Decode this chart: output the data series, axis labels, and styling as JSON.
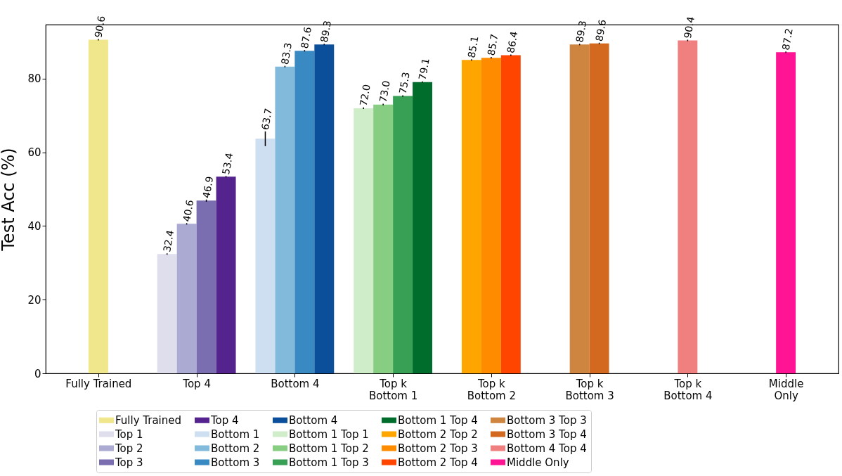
{
  "chart_data": {
    "type": "bar",
    "ylabel": "Test Acc (%)",
    "categories": [
      "Fully Trained",
      "Top 4",
      "Bottom 4",
      "Top k\nBottom 1",
      "Top k\nBottom 2",
      "Top k\nBottom 3",
      "Top k\nBottom 4",
      "Middle\nOnly"
    ],
    "ylim": [
      0,
      94.7
    ],
    "yticks": [
      0,
      20,
      40,
      60,
      80
    ],
    "grid": false,
    "legend": "bottom",
    "series": [
      {
        "name": "Fully Trained",
        "color": "#f0e68c",
        "values": [
          90.6,
          null,
          null,
          null,
          null,
          null,
          null,
          null
        ],
        "value_labels": [
          "90.6",
          null,
          null,
          null,
          null,
          null,
          null,
          null
        ],
        "errors": [
          0.2,
          null,
          null,
          null,
          null,
          null,
          null,
          null
        ]
      },
      {
        "name": "Top 1",
        "color": "#dfdeed",
        "values": [
          null,
          32.4,
          null,
          null,
          null,
          null,
          null,
          null
        ],
        "value_labels": [
          null,
          "32.4",
          null,
          null,
          null,
          null,
          null,
          null
        ],
        "errors": [
          null,
          0.2,
          null,
          null,
          null,
          null,
          null,
          null
        ]
      },
      {
        "name": "Top 2",
        "color": "#aaaad2",
        "values": [
          null,
          40.6,
          null,
          null,
          null,
          null,
          null,
          null
        ],
        "value_labels": [
          null,
          "40.6",
          null,
          null,
          null,
          null,
          null,
          null
        ],
        "errors": [
          null,
          0.2,
          null,
          null,
          null,
          null,
          null,
          null
        ]
      },
      {
        "name": "Top 3",
        "color": "#7a6db0",
        "values": [
          null,
          46.9,
          null,
          null,
          null,
          null,
          null,
          null
        ],
        "value_labels": [
          null,
          "46.9",
          null,
          null,
          null,
          null,
          null,
          null
        ],
        "errors": [
          null,
          0.3,
          null,
          null,
          null,
          null,
          null,
          null
        ]
      },
      {
        "name": "Top 4",
        "color": "#54238d",
        "values": [
          null,
          53.4,
          null,
          null,
          null,
          null,
          null,
          null
        ],
        "value_labels": [
          null,
          "53.4",
          null,
          null,
          null,
          null,
          null,
          null
        ],
        "errors": [
          null,
          0.2,
          null,
          null,
          null,
          null,
          null,
          null
        ]
      },
      {
        "name": "Bottom 1",
        "color": "#cddff0",
        "values": [
          null,
          null,
          63.7,
          null,
          null,
          null,
          null,
          null
        ],
        "value_labels": [
          null,
          null,
          "63.7",
          null,
          null,
          null,
          null,
          null
        ],
        "errors": [
          null,
          null,
          2.0,
          null,
          null,
          null,
          null,
          null
        ]
      },
      {
        "name": "Bottom 2",
        "color": "#82badb",
        "values": [
          null,
          null,
          83.3,
          null,
          null,
          null,
          null,
          null
        ],
        "value_labels": [
          null,
          null,
          "83.3",
          null,
          null,
          null,
          null,
          null
        ],
        "errors": [
          null,
          null,
          0.2,
          null,
          null,
          null,
          null,
          null
        ]
      },
      {
        "name": "Bottom 3",
        "color": "#3989c2",
        "values": [
          null,
          null,
          87.6,
          null,
          null,
          null,
          null,
          null
        ],
        "value_labels": [
          null,
          null,
          "87.6",
          null,
          null,
          null,
          null,
          null
        ],
        "errors": [
          null,
          null,
          0.2,
          null,
          null,
          null,
          null,
          null
        ]
      },
      {
        "name": "Bottom 4",
        "color": "#0b4f9a",
        "values": [
          null,
          null,
          89.3,
          null,
          null,
          null,
          null,
          null
        ],
        "value_labels": [
          null,
          null,
          "89.3",
          null,
          null,
          null,
          null,
          null
        ],
        "errors": [
          null,
          null,
          0.2,
          null,
          null,
          null,
          null,
          null
        ]
      },
      {
        "name": "Bottom 1 Top 1",
        "color": "#d0edca",
        "values": [
          null,
          null,
          null,
          72.0,
          null,
          null,
          null,
          null
        ],
        "value_labels": [
          null,
          null,
          null,
          "72.0",
          null,
          null,
          null,
          null
        ],
        "errors": [
          null,
          null,
          null,
          0.2,
          null,
          null,
          null,
          null
        ]
      },
      {
        "name": "Bottom 1 Top 2",
        "color": "#87cd82",
        "values": [
          null,
          null,
          null,
          73.0,
          null,
          null,
          null,
          null
        ],
        "value_labels": [
          null,
          null,
          null,
          "73.0",
          null,
          null,
          null,
          null
        ],
        "errors": [
          null,
          null,
          null,
          0.2,
          null,
          null,
          null,
          null
        ]
      },
      {
        "name": "Bottom 1 Top 3",
        "color": "#37a055",
        "values": [
          null,
          null,
          null,
          75.3,
          null,
          null,
          null,
          null
        ],
        "value_labels": [
          null,
          null,
          null,
          "75.3",
          null,
          null,
          null,
          null
        ],
        "errors": [
          null,
          null,
          null,
          0.2,
          null,
          null,
          null,
          null
        ]
      },
      {
        "name": "Bottom 1 Top 4",
        "color": "#006d2c",
        "values": [
          null,
          null,
          null,
          79.1,
          null,
          null,
          null,
          null
        ],
        "value_labels": [
          null,
          null,
          null,
          "79.1",
          null,
          null,
          null,
          null
        ],
        "errors": [
          null,
          null,
          null,
          0.2,
          null,
          null,
          null,
          null
        ]
      },
      {
        "name": "Bottom 2 Top 2",
        "color": "#ffa500",
        "values": [
          null,
          null,
          null,
          null,
          85.1,
          null,
          null,
          null
        ],
        "value_labels": [
          null,
          null,
          null,
          null,
          "85.1",
          null,
          null,
          null
        ],
        "errors": [
          null,
          null,
          null,
          null,
          0.2,
          null,
          null,
          null
        ]
      },
      {
        "name": "Bottom 2 Top 3",
        "color": "#ff8c00",
        "values": [
          null,
          null,
          null,
          null,
          85.7,
          null,
          null,
          null
        ],
        "value_labels": [
          null,
          null,
          null,
          null,
          "85.7",
          null,
          null,
          null
        ],
        "errors": [
          null,
          null,
          null,
          null,
          0.2,
          null,
          null,
          null
        ]
      },
      {
        "name": "Bottom 2 Top 4",
        "color": "#ff4500",
        "values": [
          null,
          null,
          null,
          null,
          86.4,
          null,
          null,
          null
        ],
        "value_labels": [
          null,
          null,
          null,
          null,
          "86.4",
          null,
          null,
          null
        ],
        "errors": [
          null,
          null,
          null,
          null,
          0.2,
          null,
          null,
          null
        ]
      },
      {
        "name": "Bottom 3 Top 3",
        "color": "#cd853f",
        "values": [
          null,
          null,
          null,
          null,
          null,
          89.3,
          null,
          null
        ],
        "value_labels": [
          null,
          null,
          null,
          null,
          null,
          "89.3",
          null,
          null
        ],
        "errors": [
          null,
          null,
          null,
          null,
          null,
          0.2,
          null,
          null
        ]
      },
      {
        "name": "Bottom 3 Top 4",
        "color": "#d2691e",
        "values": [
          null,
          null,
          null,
          null,
          null,
          89.6,
          null,
          null
        ],
        "value_labels": [
          null,
          null,
          null,
          null,
          null,
          "89.6",
          null,
          null
        ],
        "errors": [
          null,
          null,
          null,
          null,
          null,
          0.2,
          null,
          null
        ]
      },
      {
        "name": "Bottom 4 Top 4",
        "color": "#f08080",
        "values": [
          null,
          null,
          null,
          null,
          null,
          null,
          90.4,
          null
        ],
        "value_labels": [
          null,
          null,
          null,
          null,
          null,
          null,
          "90.4",
          null
        ],
        "errors": [
          null,
          null,
          null,
          null,
          null,
          null,
          0.2,
          null
        ]
      },
      {
        "name": "Middle Only",
        "color": "#ff1493",
        "values": [
          null,
          null,
          null,
          null,
          null,
          null,
          null,
          87.2
        ],
        "value_labels": [
          null,
          null,
          null,
          null,
          null,
          null,
          null,
          "87.2"
        ],
        "errors": [
          null,
          null,
          null,
          null,
          null,
          null,
          null,
          0.2
        ]
      }
    ]
  }
}
